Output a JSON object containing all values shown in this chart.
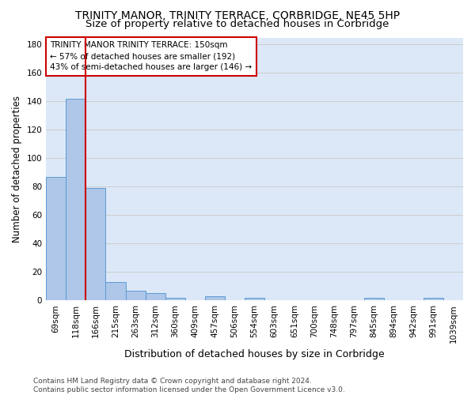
{
  "title": "TRINITY MANOR, TRINITY TERRACE, CORBRIDGE, NE45 5HP",
  "subtitle": "Size of property relative to detached houses in Corbridge",
  "xlabel": "Distribution of detached houses by size in Corbridge",
  "ylabel": "Number of detached properties",
  "bar_labels": [
    "69sqm",
    "118sqm",
    "166sqm",
    "215sqm",
    "263sqm",
    "312sqm",
    "360sqm",
    "409sqm",
    "457sqm",
    "506sqm",
    "554sqm",
    "603sqm",
    "651sqm",
    "700sqm",
    "748sqm",
    "797sqm",
    "845sqm",
    "894sqm",
    "942sqm",
    "991sqm",
    "1039sqm"
  ],
  "bar_values": [
    87,
    142,
    79,
    13,
    7,
    5,
    2,
    0,
    3,
    0,
    2,
    0,
    0,
    0,
    0,
    0,
    2,
    0,
    0,
    2,
    0
  ],
  "bar_color": "#aec6e8",
  "bar_edge_color": "#5b9bd5",
  "annotation_text": "TRINITY MANOR TRINITY TERRACE: 150sqm\n← 57% of detached houses are smaller (192)\n43% of semi-detached houses are larger (146) →",
  "annotation_box_color": "#ffffff",
  "annotation_border_color": "#cc0000",
  "vline_x": 1.5,
  "vline_color": "#cc0000",
  "ylim": [
    0,
    185
  ],
  "yticks": [
    0,
    20,
    40,
    60,
    80,
    100,
    120,
    140,
    160,
    180
  ],
  "grid_color": "#cccccc",
  "bg_color": "#dce8f8",
  "footer": "Contains HM Land Registry data © Crown copyright and database right 2024.\nContains public sector information licensed under the Open Government Licence v3.0.",
  "title_fontsize": 10,
  "subtitle_fontsize": 9.5,
  "xlabel_fontsize": 9,
  "ylabel_fontsize": 8.5,
  "tick_fontsize": 7.5,
  "annotation_fontsize": 7.5,
  "footer_fontsize": 6.5
}
